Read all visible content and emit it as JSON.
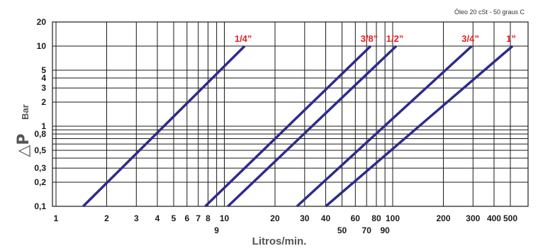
{
  "chart_data": {
    "type": "line",
    "note": "Óleo 20 cSt - 50 graus C",
    "xlabel": "Litros/min.",
    "ylabel_symbol": "△P",
    "ylabel": "Bar",
    "x_scale": "log",
    "y_scale": "log",
    "xlim": [
      1,
      550
    ],
    "ylim": [
      0.1,
      20
    ],
    "grid": true,
    "x_ticks": [
      {
        "value": 1,
        "label": "1",
        "row": 1
      },
      {
        "value": 2,
        "label": "2",
        "row": 1
      },
      {
        "value": 3,
        "label": "3",
        "row": 1
      },
      {
        "value": 4,
        "label": "4",
        "row": 1
      },
      {
        "value": 5,
        "label": "5",
        "row": 1
      },
      {
        "value": 6,
        "label": "6",
        "row": 1
      },
      {
        "value": 7,
        "label": "7",
        "row": 1
      },
      {
        "value": 8,
        "label": "8",
        "row": 1
      },
      {
        "value": 9,
        "label": "9",
        "row": 2
      },
      {
        "value": 10,
        "label": "10",
        "row": 1
      },
      {
        "value": 20,
        "label": "20",
        "row": 1
      },
      {
        "value": 30,
        "label": "30",
        "row": 1
      },
      {
        "value": 40,
        "label": "40",
        "row": 1
      },
      {
        "value": 50,
        "label": "50",
        "row": 2
      },
      {
        "value": 60,
        "label": "60",
        "row": 1
      },
      {
        "value": 70,
        "label": "70",
        "row": 2
      },
      {
        "value": 80,
        "label": "80",
        "row": 1
      },
      {
        "value": 90,
        "label": "90",
        "row": 2
      },
      {
        "value": 100,
        "label": "100",
        "row": 1
      },
      {
        "value": 200,
        "label": "200",
        "row": 1
      },
      {
        "value": 300,
        "label": "300",
        "row": 1
      },
      {
        "value": 400,
        "label": "400",
        "row": 1
      },
      {
        "value": 500,
        "label": "500",
        "row": 1
      }
    ],
    "y_ticks": [
      {
        "value": 0.1,
        "label": "0,1"
      },
      {
        "value": 0.2,
        "label": "0,2"
      },
      {
        "value": 0.3,
        "label": "0,3"
      },
      {
        "value": 0.4,
        "label": ""
      },
      {
        "value": 0.5,
        "label": "0,5"
      },
      {
        "value": 0.6,
        "label": ""
      },
      {
        "value": 0.7,
        "label": ""
      },
      {
        "value": 0.8,
        "label": "0,8"
      },
      {
        "value": 0.9,
        "label": ""
      },
      {
        "value": 1,
        "label": "1"
      },
      {
        "value": 2,
        "label": "2"
      },
      {
        "value": 3,
        "label": "3"
      },
      {
        "value": 4,
        "label": "4"
      },
      {
        "value": 5,
        "label": "5"
      },
      {
        "value": 10,
        "label": "10"
      },
      {
        "value": 20,
        "label": "20"
      }
    ],
    "series": [
      {
        "name": "1/4”",
        "points": [
          [
            1.45,
            0.1
          ],
          [
            13.2,
            10
          ]
        ]
      },
      {
        "name": "3/8”",
        "points": [
          [
            7.7,
            0.1
          ],
          [
            74,
            10
          ]
        ]
      },
      {
        "name": "1/2”",
        "points": [
          [
            10.5,
            0.1
          ],
          [
            105,
            10
          ]
        ]
      },
      {
        "name": "3/4”",
        "points": [
          [
            27,
            0.1
          ],
          [
            295,
            10
          ]
        ]
      },
      {
        "name": "1”",
        "points": [
          [
            40,
            0.1
          ],
          [
            515,
            10
          ]
        ]
      }
    ],
    "colors": {
      "line": "#2e2b8c",
      "label": "#e02020",
      "grid": "#1a1a1a",
      "axis_title": "#555555"
    }
  }
}
